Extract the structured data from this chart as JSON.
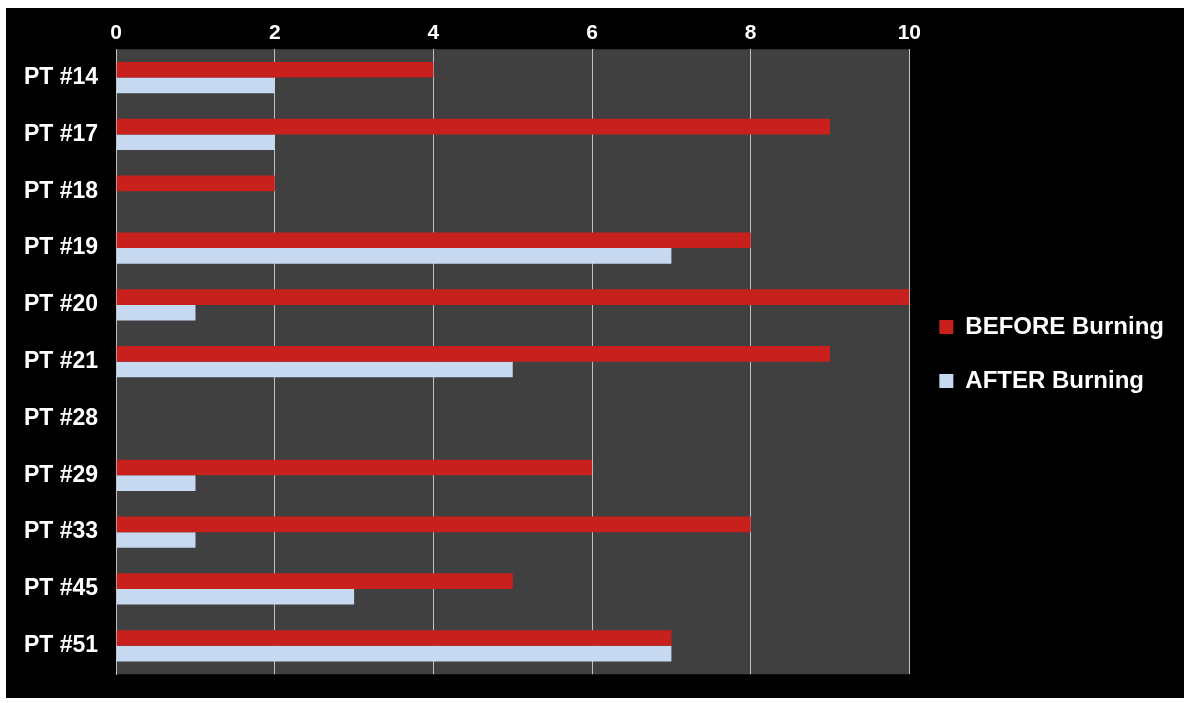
{
  "chart_data": {
    "type": "bar",
    "orientation": "horizontal",
    "categories": [
      "PT #14",
      "PT #17",
      "PT #18",
      "PT #19",
      "PT #20",
      "PT #21",
      "PT #28",
      "PT #29",
      "PT #33",
      "PT #45",
      "PT #51"
    ],
    "series": [
      {
        "name": "BEFORE Burning",
        "color": "#c8201c",
        "values": [
          4,
          9,
          2,
          8,
          10,
          9,
          0,
          6,
          8,
          5,
          7
        ]
      },
      {
        "name": "AFTER Burning",
        "color": "#c6d9f1",
        "values": [
          2,
          2,
          0,
          7,
          1,
          5,
          0,
          1,
          1,
          3,
          7
        ]
      }
    ],
    "xlim": [
      0,
      10
    ],
    "xticks": [
      0,
      2,
      4,
      6,
      8,
      10
    ],
    "grid": "x",
    "legend": "right"
  }
}
